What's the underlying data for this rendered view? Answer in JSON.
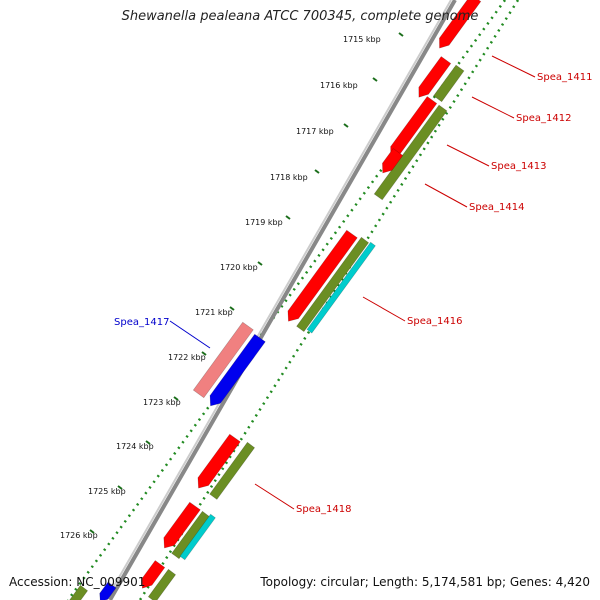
{
  "title": "Shewanella pealeana ATCC 700345, complete genome",
  "ticks": [
    {
      "label": "1715 kbp"
    },
    {
      "label": "1716 kbp"
    },
    {
      "label": "1717 kbp"
    },
    {
      "label": "1718 kbp"
    },
    {
      "label": "1719 kbp"
    },
    {
      "label": "1720 kbp"
    },
    {
      "label": "1721 kbp"
    },
    {
      "label": "1722 kbp"
    },
    {
      "label": "1723 kbp"
    },
    {
      "label": "1724 kbp"
    },
    {
      "label": "1725 kbp"
    },
    {
      "label": "1726 kbp"
    }
  ],
  "gene_labels": [
    {
      "text": "Spea_1411",
      "color": "#cc0000"
    },
    {
      "text": "Spea_1412",
      "color": "#cc0000"
    },
    {
      "text": "Spea_1413",
      "color": "#cc0000"
    },
    {
      "text": "Spea_1414",
      "color": "#cc0000"
    },
    {
      "text": "Spea_1416",
      "color": "#cc0000"
    },
    {
      "text": "Spea_1417",
      "color": "#0000cc"
    },
    {
      "text": "Spea_1418",
      "color": "#cc0000"
    }
  ],
  "colors": {
    "forward_cds": "#ff0000",
    "forward_cds_highlight": "#f08080",
    "reverse_cds": "#0000ee",
    "olive_track": "#6b8e23",
    "cyan_track": "#00cccc",
    "backbone": "#888888",
    "dotted_track": "#228b22"
  },
  "footer": {
    "accession": "Accession: NC_009901",
    "topology": "Topology: circular; Length: 5,174,581 bp; Genes: 4,420"
  }
}
